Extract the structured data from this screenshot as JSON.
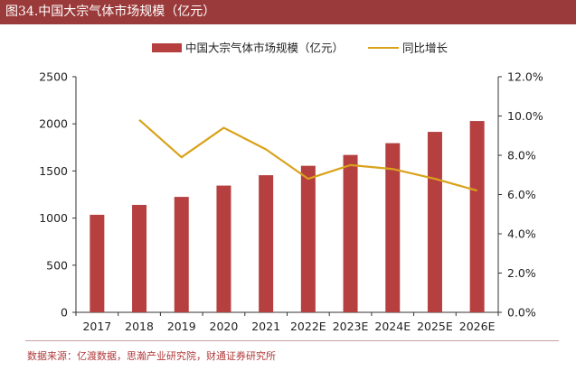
{
  "title": "图34.中国大宗气体市场规模（亿元）",
  "source": "数据来源：亿渡数据，思瀚产业研究院，财通证券研究所",
  "colors": {
    "bar": "#b5403f",
    "line": "#d9a21b",
    "title_bg": "#9b3a3a"
  },
  "chart_data": {
    "type": "bar",
    "categories": [
      "2017",
      "2018",
      "2019",
      "2020",
      "2021",
      "2022E",
      "2023E",
      "2024E",
      "2025E",
      "2026E"
    ],
    "series": [
      {
        "name": "中国大宗气体市场规模（亿元）",
        "type": "bar",
        "axis": "left",
        "values": [
          1035,
          1140,
          1225,
          1345,
          1455,
          1555,
          1670,
          1795,
          1915,
          2030
        ]
      },
      {
        "name": "同比增长",
        "type": "line",
        "axis": "right",
        "values": [
          null,
          9.8,
          7.9,
          9.4,
          8.3,
          6.8,
          7.5,
          7.3,
          6.8,
          6.2
        ]
      }
    ],
    "ylim_left": [
      0,
      2500
    ],
    "yticks_left": [
      "0",
      "500",
      "1000",
      "1500",
      "2000",
      "2500"
    ],
    "ylim_right": [
      0,
      12
    ],
    "yticks_right": [
      "0.0%",
      "2.0%",
      "4.0%",
      "6.0%",
      "8.0%",
      "10.0%",
      "12.0%"
    ],
    "legend_position": "top-center",
    "grid": false
  }
}
